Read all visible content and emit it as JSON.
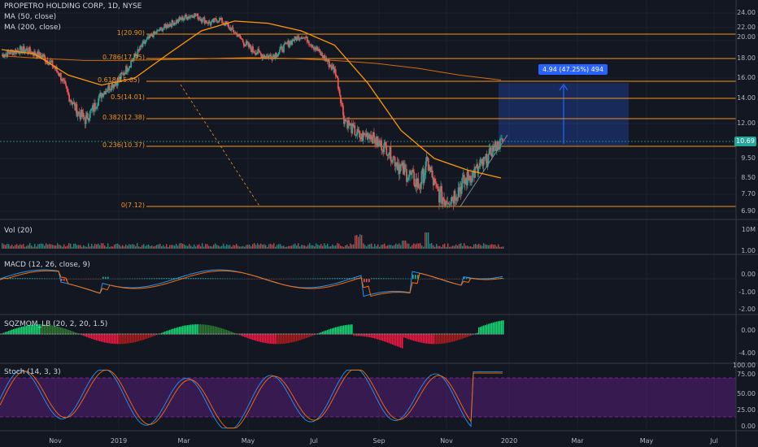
{
  "header": {
    "symbol_line": "PROPETRO HOLDING CORP, 1D, NYSE",
    "ma50": "MA (50, close)",
    "ma200": "MA (200, close)"
  },
  "price_axis": [
    "24.00",
    "22.00",
    "20.00",
    "18.00",
    "16.00",
    "14.00",
    "12.00",
    "9.50",
    "8.50",
    "7.70",
    "6.90"
  ],
  "current_price": "10.69",
  "fib_labels": [
    "1(20.90)",
    "0.786(17.95)",
    "0.618(15.65)",
    "0.5(14.01)",
    "0.382(12.38)",
    "0.236(10.37)",
    "0(7.12)"
  ],
  "measure_label": "4.94 (47.25%) 494",
  "panes": {
    "volume": {
      "title": "Vol (20)",
      "axis": [
        "10M"
      ]
    },
    "macd": {
      "title": "MACD (12, 26, close, 9)",
      "axis": [
        "1.00",
        "0.00",
        "-1.00",
        "-2.00"
      ]
    },
    "sqzmom": {
      "title": "SQZMOM_LB (20, 2, 20, 1.5)",
      "axis": [
        "0.00",
        "-4.00"
      ]
    },
    "stoch": {
      "title": "Stoch (14, 3, 3)",
      "axis": [
        "100.00",
        "75.00",
        "50.00",
        "25.00",
        "0.00"
      ]
    }
  },
  "time_axis": [
    "Nov",
    "2019",
    "Mar",
    "May",
    "Jul",
    "Sep",
    "Nov",
    "2020",
    "Mar",
    "May",
    "Jul"
  ],
  "colors": {
    "background": "#131722",
    "up": "#26a69a",
    "down": "#ef5350",
    "fib": "#f7931a",
    "ma50": "#ff9800",
    "ma200": "#f57c00",
    "measure": "#2962ff"
  },
  "chart_data": {
    "type": "line",
    "title": "PROPETRO HOLDING CORP, 1D, NYSE",
    "ylim": [
      6.9,
      24.0
    ],
    "series": [
      {
        "name": "MA (50, close)",
        "values": [
          19.0,
          18.5,
          16.3,
          15.3,
          16.0,
          18.5,
          21.5,
          22.9,
          22.6,
          21.5,
          19.5,
          15.5,
          11.5,
          9.5,
          8.9,
          8.5
        ]
      },
      {
        "name": "MA (200, close)",
        "values": [
          18.3,
          18.0,
          17.8,
          17.8,
          17.9,
          18.0,
          18.1,
          18.0,
          17.8,
          17.5,
          17.0,
          16.3,
          15.8
        ]
      }
    ],
    "close": [
      18.4,
      18.7,
      18.9,
      19.0,
      18.5,
      18.2,
      17.4,
      16.3,
      14.3,
      13.0,
      12.3,
      13.2,
      14.5,
      15.2,
      15.8,
      17.0,
      18.3,
      19.6,
      20.8,
      21.7,
      22.4,
      22.9,
      23.4,
      23.8,
      23.2,
      22.6,
      23.2,
      22.3,
      21.2,
      19.8,
      19.0,
      18.5,
      18.2,
      18.6,
      19.4,
      20.2,
      20.7,
      19.8,
      18.7,
      17.7,
      16.6,
      12.4,
      11.6,
      11.0,
      11.3,
      10.6,
      10.3,
      9.5,
      8.9,
      8.6,
      8.1,
      9.3,
      7.9,
      7.5,
      7.6,
      8.1,
      8.6,
      8.9,
      9.4,
      10.3,
      10.7
    ]
  }
}
